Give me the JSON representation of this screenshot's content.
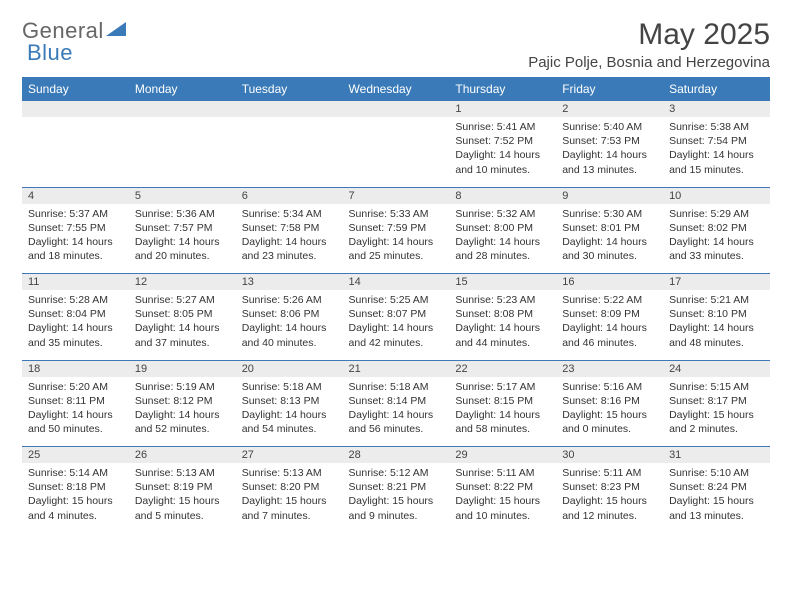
{
  "brand": {
    "part1": "General",
    "part2": "Blue"
  },
  "title": "May 2025",
  "location": "Pajic Polje, Bosnia and Herzegovina",
  "colors": {
    "header_bg": "#3a7ab8",
    "header_text": "#ffffff",
    "daynum_bg": "#ececec",
    "week_divider": "#3a7ab8",
    "text": "#333333",
    "logo_accent": "#3a7ab8"
  },
  "fonts": {
    "title_size": 30,
    "location_size": 15,
    "dayheader_size": 12,
    "cell_size": 10.5
  },
  "day_headers": [
    "Sunday",
    "Monday",
    "Tuesday",
    "Wednesday",
    "Thursday",
    "Friday",
    "Saturday"
  ],
  "weeks": [
    [
      null,
      null,
      null,
      null,
      {
        "n": "1",
        "sunrise": "5:41 AM",
        "sunset": "7:52 PM",
        "dl1": "Daylight: 14 hours",
        "dl2": "and 10 minutes."
      },
      {
        "n": "2",
        "sunrise": "5:40 AM",
        "sunset": "7:53 PM",
        "dl1": "Daylight: 14 hours",
        "dl2": "and 13 minutes."
      },
      {
        "n": "3",
        "sunrise": "5:38 AM",
        "sunset": "7:54 PM",
        "dl1": "Daylight: 14 hours",
        "dl2": "and 15 minutes."
      }
    ],
    [
      {
        "n": "4",
        "sunrise": "5:37 AM",
        "sunset": "7:55 PM",
        "dl1": "Daylight: 14 hours",
        "dl2": "and 18 minutes."
      },
      {
        "n": "5",
        "sunrise": "5:36 AM",
        "sunset": "7:57 PM",
        "dl1": "Daylight: 14 hours",
        "dl2": "and 20 minutes."
      },
      {
        "n": "6",
        "sunrise": "5:34 AM",
        "sunset": "7:58 PM",
        "dl1": "Daylight: 14 hours",
        "dl2": "and 23 minutes."
      },
      {
        "n": "7",
        "sunrise": "5:33 AM",
        "sunset": "7:59 PM",
        "dl1": "Daylight: 14 hours",
        "dl2": "and 25 minutes."
      },
      {
        "n": "8",
        "sunrise": "5:32 AM",
        "sunset": "8:00 PM",
        "dl1": "Daylight: 14 hours",
        "dl2": "and 28 minutes."
      },
      {
        "n": "9",
        "sunrise": "5:30 AM",
        "sunset": "8:01 PM",
        "dl1": "Daylight: 14 hours",
        "dl2": "and 30 minutes."
      },
      {
        "n": "10",
        "sunrise": "5:29 AM",
        "sunset": "8:02 PM",
        "dl1": "Daylight: 14 hours",
        "dl2": "and 33 minutes."
      }
    ],
    [
      {
        "n": "11",
        "sunrise": "5:28 AM",
        "sunset": "8:04 PM",
        "dl1": "Daylight: 14 hours",
        "dl2": "and 35 minutes."
      },
      {
        "n": "12",
        "sunrise": "5:27 AM",
        "sunset": "8:05 PM",
        "dl1": "Daylight: 14 hours",
        "dl2": "and 37 minutes."
      },
      {
        "n": "13",
        "sunrise": "5:26 AM",
        "sunset": "8:06 PM",
        "dl1": "Daylight: 14 hours",
        "dl2": "and 40 minutes."
      },
      {
        "n": "14",
        "sunrise": "5:25 AM",
        "sunset": "8:07 PM",
        "dl1": "Daylight: 14 hours",
        "dl2": "and 42 minutes."
      },
      {
        "n": "15",
        "sunrise": "5:23 AM",
        "sunset": "8:08 PM",
        "dl1": "Daylight: 14 hours",
        "dl2": "and 44 minutes."
      },
      {
        "n": "16",
        "sunrise": "5:22 AM",
        "sunset": "8:09 PM",
        "dl1": "Daylight: 14 hours",
        "dl2": "and 46 minutes."
      },
      {
        "n": "17",
        "sunrise": "5:21 AM",
        "sunset": "8:10 PM",
        "dl1": "Daylight: 14 hours",
        "dl2": "and 48 minutes."
      }
    ],
    [
      {
        "n": "18",
        "sunrise": "5:20 AM",
        "sunset": "8:11 PM",
        "dl1": "Daylight: 14 hours",
        "dl2": "and 50 minutes."
      },
      {
        "n": "19",
        "sunrise": "5:19 AM",
        "sunset": "8:12 PM",
        "dl1": "Daylight: 14 hours",
        "dl2": "and 52 minutes."
      },
      {
        "n": "20",
        "sunrise": "5:18 AM",
        "sunset": "8:13 PM",
        "dl1": "Daylight: 14 hours",
        "dl2": "and 54 minutes."
      },
      {
        "n": "21",
        "sunrise": "5:18 AM",
        "sunset": "8:14 PM",
        "dl1": "Daylight: 14 hours",
        "dl2": "and 56 minutes."
      },
      {
        "n": "22",
        "sunrise": "5:17 AM",
        "sunset": "8:15 PM",
        "dl1": "Daylight: 14 hours",
        "dl2": "and 58 minutes."
      },
      {
        "n": "23",
        "sunrise": "5:16 AM",
        "sunset": "8:16 PM",
        "dl1": "Daylight: 15 hours",
        "dl2": "and 0 minutes."
      },
      {
        "n": "24",
        "sunrise": "5:15 AM",
        "sunset": "8:17 PM",
        "dl1": "Daylight: 15 hours",
        "dl2": "and 2 minutes."
      }
    ],
    [
      {
        "n": "25",
        "sunrise": "5:14 AM",
        "sunset": "8:18 PM",
        "dl1": "Daylight: 15 hours",
        "dl2": "and 4 minutes."
      },
      {
        "n": "26",
        "sunrise": "5:13 AM",
        "sunset": "8:19 PM",
        "dl1": "Daylight: 15 hours",
        "dl2": "and 5 minutes."
      },
      {
        "n": "27",
        "sunrise": "5:13 AM",
        "sunset": "8:20 PM",
        "dl1": "Daylight: 15 hours",
        "dl2": "and 7 minutes."
      },
      {
        "n": "28",
        "sunrise": "5:12 AM",
        "sunset": "8:21 PM",
        "dl1": "Daylight: 15 hours",
        "dl2": "and 9 minutes."
      },
      {
        "n": "29",
        "sunrise": "5:11 AM",
        "sunset": "8:22 PM",
        "dl1": "Daylight: 15 hours",
        "dl2": "and 10 minutes."
      },
      {
        "n": "30",
        "sunrise": "5:11 AM",
        "sunset": "8:23 PM",
        "dl1": "Daylight: 15 hours",
        "dl2": "and 12 minutes."
      },
      {
        "n": "31",
        "sunrise": "5:10 AM",
        "sunset": "8:24 PM",
        "dl1": "Daylight: 15 hours",
        "dl2": "and 13 minutes."
      }
    ]
  ],
  "labels": {
    "sunrise_prefix": "Sunrise: ",
    "sunset_prefix": "Sunset: "
  }
}
